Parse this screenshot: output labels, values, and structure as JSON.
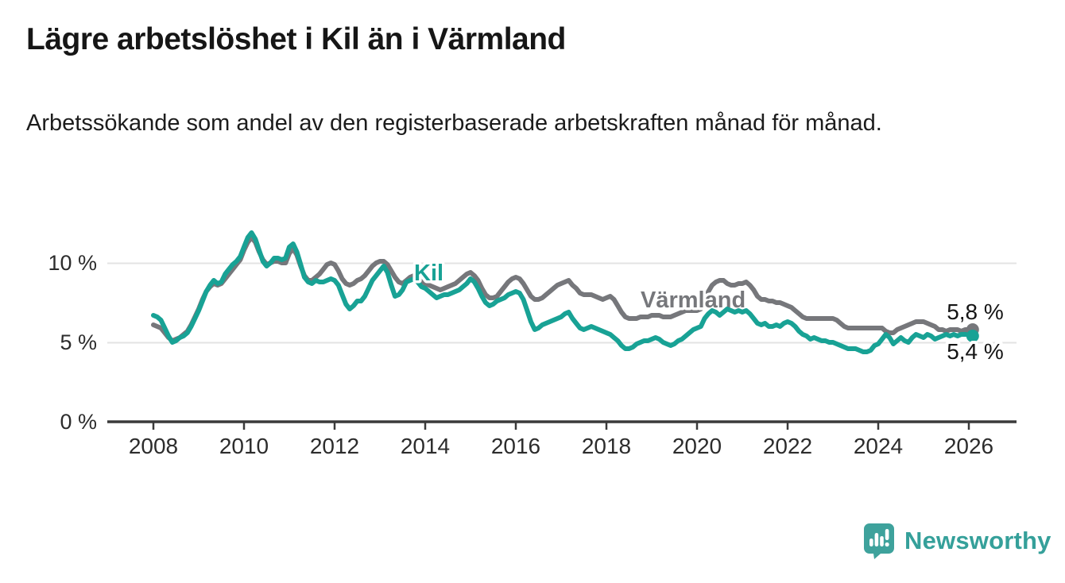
{
  "title": "Lägre arbetslöshet i Kil än i Värmland",
  "subtitle": "Arbetssökande som andel av den registerbaserade arbetskraften månad för månad.",
  "branding": {
    "logo_text": "Newsworthy",
    "logo_icon": "speech-bubble-with-bar-chart-and-exclamation",
    "brand_color": "#35a09a"
  },
  "colors": {
    "kil_line": "#18a295",
    "varmland_line": "#76777b",
    "gridline": "#e3e3e3",
    "axis": "#3a3a3a",
    "tick_label": "#2c2c2c",
    "annotation_text": "#141414",
    "title_text": "#161616"
  },
  "chart_data": {
    "type": "line",
    "title": "Lägre arbetslöshet i Kil än i Värmland",
    "subtitle": "Arbetssökande som andel av den registerbaserade arbetskraften månad för månad.",
    "xlabel": "",
    "ylabel": "",
    "frequency": "monthly",
    "x_start": "2008-01",
    "x_end": "2026-02",
    "ylim": [
      0,
      12.5
    ],
    "grid": "horizontal",
    "legend_position": "inline-labels",
    "x_ticks": [
      2008,
      2010,
      2012,
      2014,
      2016,
      2018,
      2020,
      2022,
      2024,
      2026
    ],
    "y_ticks": [
      {
        "value": 0,
        "label": "0 %"
      },
      {
        "value": 5,
        "label": "5 %"
      },
      {
        "value": 10,
        "label": "10 %"
      }
    ],
    "series": [
      {
        "name": "Värmland",
        "color": "#76777b",
        "end_label": "5,8 %",
        "last_value": 5.8,
        "values": [
          6.1,
          6.0,
          5.9,
          5.6,
          5.3,
          5.1,
          5.2,
          5.3,
          5.5,
          5.7,
          6.1,
          6.6,
          7.1,
          7.7,
          8.2,
          8.5,
          8.7,
          8.6,
          8.7,
          9.0,
          9.3,
          9.6,
          9.9,
          10.2,
          10.8,
          11.3,
          11.6,
          11.3,
          10.7,
          10.2,
          9.9,
          10.0,
          10.1,
          10.1,
          10.0,
          10.0,
          10.6,
          10.9,
          10.5,
          9.8,
          9.2,
          8.9,
          8.9,
          9.1,
          9.3,
          9.6,
          9.9,
          10.0,
          9.9,
          9.5,
          9.0,
          8.7,
          8.6,
          8.7,
          8.9,
          9.0,
          9.2,
          9.5,
          9.8,
          10.0,
          10.1,
          10.1,
          9.9,
          9.5,
          9.1,
          8.8,
          8.7,
          8.9,
          9.1,
          9.2,
          9.1,
          8.9,
          8.7,
          8.6,
          8.5,
          8.4,
          8.3,
          8.4,
          8.5,
          8.6,
          8.7,
          8.9,
          9.1,
          9.3,
          9.4,
          9.2,
          8.9,
          8.4,
          8.0,
          7.8,
          7.8,
          7.9,
          8.2,
          8.5,
          8.8,
          9.0,
          9.1,
          9.0,
          8.7,
          8.3,
          7.9,
          7.7,
          7.7,
          7.8,
          8.0,
          8.2,
          8.4,
          8.6,
          8.7,
          8.8,
          8.9,
          8.6,
          8.4,
          8.1,
          8.0,
          8.0,
          8.0,
          7.9,
          7.8,
          7.7,
          7.8,
          7.9,
          7.7,
          7.3,
          6.9,
          6.6,
          6.5,
          6.5,
          6.5,
          6.6,
          6.6,
          6.6,
          6.7,
          6.7,
          6.7,
          6.6,
          6.6,
          6.6,
          6.7,
          6.8,
          6.9,
          7.0,
          7.0,
          7.0,
          7.0,
          7.1,
          7.5,
          8.2,
          8.6,
          8.8,
          8.9,
          8.9,
          8.7,
          8.6,
          8.6,
          8.7,
          8.7,
          8.8,
          8.6,
          8.3,
          7.9,
          7.7,
          7.7,
          7.6,
          7.6,
          7.5,
          7.5,
          7.4,
          7.3,
          7.2,
          7.0,
          6.8,
          6.6,
          6.5,
          6.5,
          6.5,
          6.5,
          6.5,
          6.5,
          6.5,
          6.5,
          6.4,
          6.2,
          6.0,
          5.9,
          5.9,
          5.9,
          5.9,
          5.9,
          5.9,
          5.9,
          5.9,
          5.9,
          5.9,
          5.7,
          5.6,
          5.6,
          5.8,
          5.9,
          6.0,
          6.1,
          6.2,
          6.3,
          6.3,
          6.3,
          6.2,
          6.1,
          6.0,
          5.8,
          5.8,
          5.7,
          5.8,
          5.8,
          5.8,
          5.7,
          5.8,
          5.8,
          5.8
        ]
      },
      {
        "name": "Kil",
        "color": "#18a295",
        "end_label": "5,4 %",
        "last_value": 5.4,
        "values": [
          6.7,
          6.6,
          6.4,
          5.9,
          5.4,
          5.0,
          5.1,
          5.3,
          5.4,
          5.6,
          6.0,
          6.5,
          7.0,
          7.6,
          8.2,
          8.6,
          8.9,
          8.7,
          8.8,
          9.3,
          9.6,
          9.9,
          10.1,
          10.4,
          11.0,
          11.6,
          11.9,
          11.5,
          10.8,
          10.1,
          9.8,
          10.0,
          10.3,
          10.3,
          10.2,
          10.3,
          11.0,
          11.2,
          10.7,
          9.9,
          9.1,
          8.8,
          8.7,
          8.9,
          8.8,
          8.8,
          8.9,
          9.0,
          8.9,
          8.6,
          8.0,
          7.4,
          7.1,
          7.3,
          7.6,
          7.6,
          7.9,
          8.4,
          8.9,
          9.2,
          9.5,
          9.8,
          9.4,
          8.6,
          7.9,
          8.0,
          8.3,
          8.8,
          8.9,
          9.0,
          8.8,
          8.5,
          8.4,
          8.2,
          8.0,
          7.8,
          7.9,
          8.0,
          8.0,
          8.1,
          8.2,
          8.3,
          8.5,
          8.7,
          9.0,
          8.8,
          8.4,
          7.9,
          7.5,
          7.3,
          7.4,
          7.6,
          7.7,
          7.8,
          8.0,
          8.1,
          8.2,
          8.1,
          7.7,
          7.0,
          6.3,
          5.8,
          5.9,
          6.1,
          6.2,
          6.3,
          6.4,
          6.5,
          6.6,
          6.8,
          6.9,
          6.5,
          6.2,
          5.9,
          5.8,
          5.9,
          6.0,
          5.9,
          5.8,
          5.7,
          5.6,
          5.5,
          5.3,
          5.1,
          4.8,
          4.6,
          4.6,
          4.7,
          4.9,
          5.0,
          5.1,
          5.1,
          5.2,
          5.3,
          5.2,
          5.0,
          4.9,
          4.8,
          4.9,
          5.1,
          5.2,
          5.4,
          5.6,
          5.8,
          5.9,
          6.0,
          6.5,
          6.8,
          7.0,
          6.9,
          6.7,
          6.9,
          7.1,
          7.0,
          6.9,
          7.0,
          6.9,
          7.0,
          6.8,
          6.5,
          6.2,
          6.1,
          6.2,
          6.0,
          6.0,
          6.1,
          6.0,
          6.2,
          6.3,
          6.2,
          6.0,
          5.7,
          5.5,
          5.4,
          5.2,
          5.3,
          5.2,
          5.1,
          5.1,
          5.0,
          5.0,
          4.9,
          4.8,
          4.7,
          4.6,
          4.6,
          4.6,
          4.5,
          4.4,
          4.4,
          4.5,
          4.8,
          4.9,
          5.2,
          5.5,
          5.3,
          4.9,
          5.1,
          5.3,
          5.1,
          5.0,
          5.3,
          5.5,
          5.4,
          5.3,
          5.5,
          5.4,
          5.2,
          5.3,
          5.4,
          5.5,
          5.4,
          5.5,
          5.4,
          5.5,
          5.5,
          5.5,
          5.4
        ]
      }
    ]
  }
}
